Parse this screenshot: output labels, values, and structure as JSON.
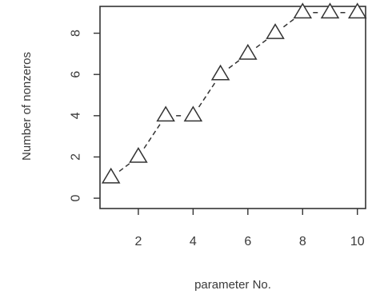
{
  "chart_data": {
    "type": "line",
    "title": "",
    "xlabel": "parameter No.",
    "ylabel": "Number of nonzeros",
    "x": [
      1,
      2,
      3,
      4,
      5,
      6,
      7,
      8,
      9,
      10
    ],
    "y": [
      1,
      2,
      4,
      4,
      6,
      7,
      8,
      9,
      9,
      9
    ],
    "xticks": [
      "2",
      "4",
      "6",
      "8",
      "10"
    ],
    "yticks": [
      "0",
      "2",
      "4",
      "6",
      "8"
    ],
    "xlim": [
      0.6,
      10.3
    ],
    "ylim": [
      -0.5,
      9.3
    ],
    "marker": "open-triangle",
    "line_style": "dashed",
    "grid": false,
    "legend": "none",
    "colors": {
      "line": "#333333",
      "marker": "#333333",
      "axis": "#333333",
      "text": "#3a3a3a"
    }
  }
}
